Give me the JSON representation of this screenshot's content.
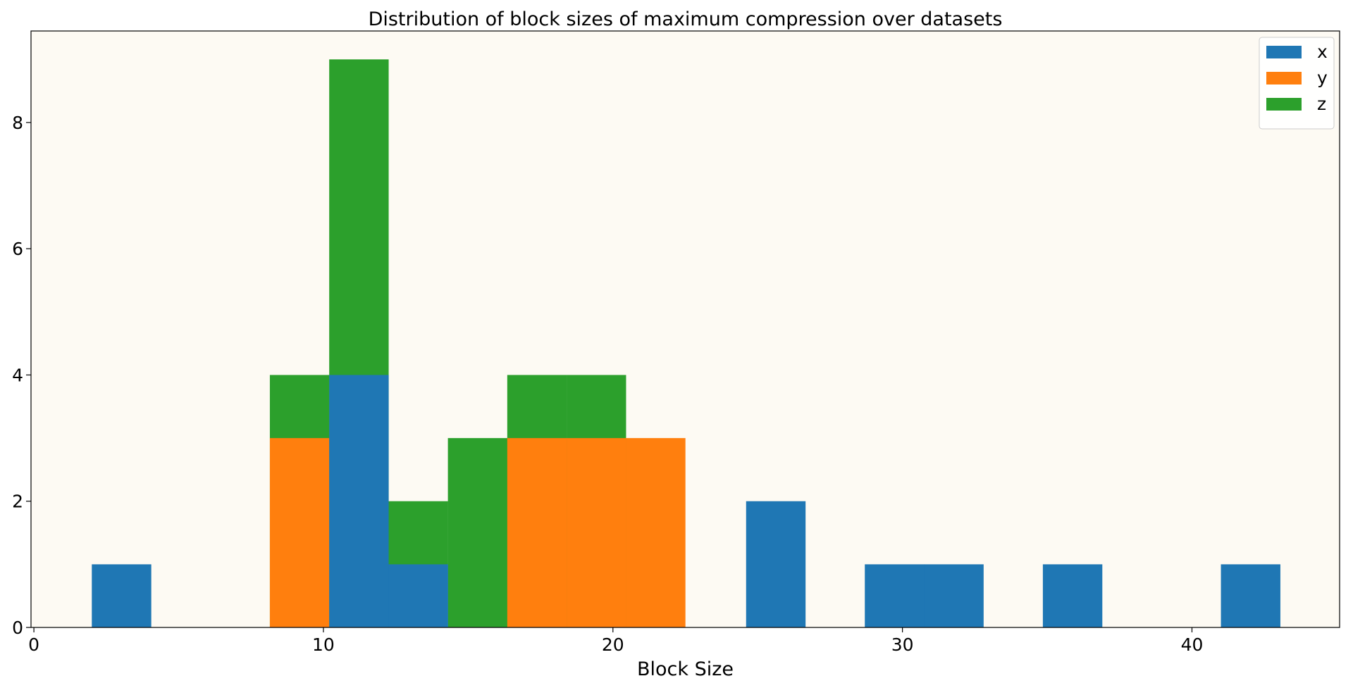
{
  "chart_data": {
    "type": "bar",
    "title": "Distribution of block sizes of maximum compression over datasets",
    "xlabel": "Block Size",
    "ylabel": "",
    "xlim": [
      -0.1,
      45.1
    ],
    "ylim": [
      0,
      9.45
    ],
    "xticks": [
      0,
      10,
      20,
      30,
      40
    ],
    "yticks": [
      0,
      2,
      4,
      6,
      8
    ],
    "bin_width": 2.054,
    "background_color": "#fdfaf3",
    "grid": false,
    "legend_position": "top-right",
    "draw_order": [
      "z",
      "y",
      "x"
    ],
    "series": [
      {
        "name": "x",
        "color": "#1f77b4",
        "bars": [
          {
            "x": 2.0,
            "value": 1
          },
          {
            "x": 10.2,
            "value": 4
          },
          {
            "x": 12.25,
            "value": 1
          },
          {
            "x": 24.6,
            "value": 2
          },
          {
            "x": 28.7,
            "value": 1
          },
          {
            "x": 30.75,
            "value": 1
          },
          {
            "x": 34.85,
            "value": 1
          },
          {
            "x": 41.0,
            "value": 1
          }
        ]
      },
      {
        "name": "y",
        "color": "#ff7f0e",
        "bars": [
          {
            "x": 8.15,
            "value": 3
          },
          {
            "x": 16.35,
            "value": 3
          },
          {
            "x": 18.4,
            "value": 3
          },
          {
            "x": 20.45,
            "value": 3
          }
        ]
      },
      {
        "name": "z",
        "color": "#2ca02c",
        "bars": [
          {
            "x": 8.15,
            "value": 4
          },
          {
            "x": 10.2,
            "value": 9
          },
          {
            "x": 12.25,
            "value": 2
          },
          {
            "x": 14.3,
            "value": 3
          },
          {
            "x": 16.35,
            "value": 4
          },
          {
            "x": 18.4,
            "value": 4
          }
        ]
      }
    ]
  }
}
